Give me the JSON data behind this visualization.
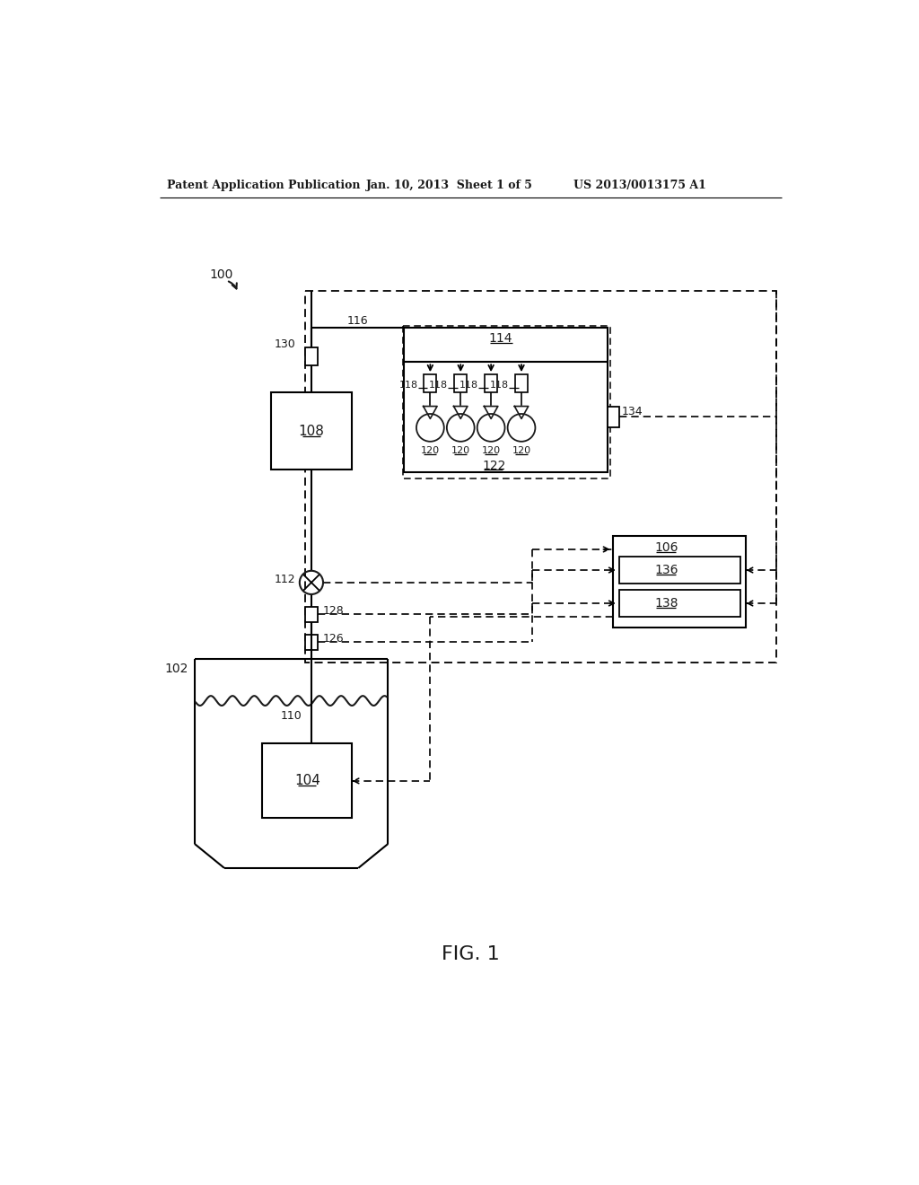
{
  "header_left": "Patent Application Publication",
  "header_mid": "Jan. 10, 2013  Sheet 1 of 5",
  "header_right": "US 2013/0013175 A1",
  "fig_label": "FIG. 1",
  "bg_color": "#ffffff",
  "line_color": "#1a1a1a"
}
